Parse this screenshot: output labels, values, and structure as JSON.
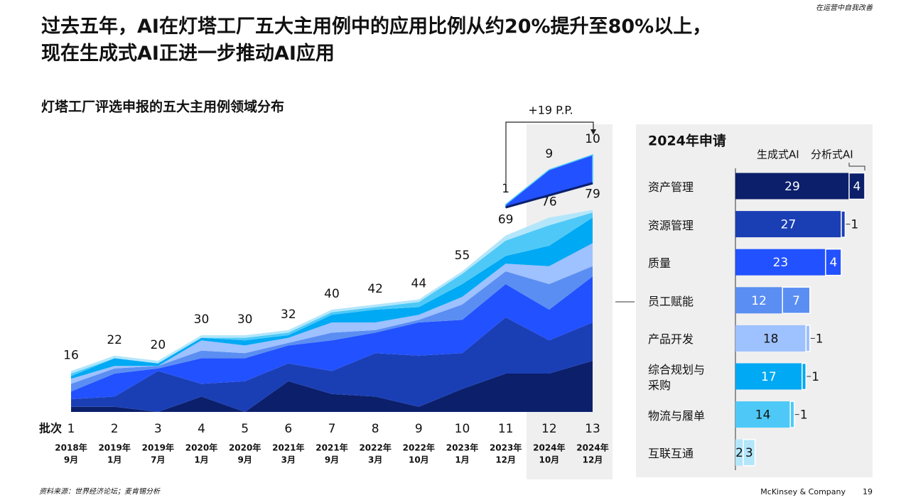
{
  "header": {
    "title_lines": [
      "过去五年，AI在灯塔工厂五大主用例中的应用比例从约20%提升至80%以上，",
      "现在生成式AI正进一步推动AI应用"
    ],
    "corner_note": "在运营中自我改善"
  },
  "chart_data": [
    {
      "type": "area",
      "title": "灯塔工厂评选申报的五大主用例领域分布",
      "x_label": "批次",
      "categories": [
        "1",
        "2",
        "3",
        "4",
        "5",
        "6",
        "7",
        "8",
        "9",
        "10",
        "11",
        "12",
        "13"
      ],
      "dates": [
        [
          "2018年",
          "9月"
        ],
        [
          "2019年",
          "1月"
        ],
        [
          "2019年",
          "7月"
        ],
        [
          "2020年",
          "1月"
        ],
        [
          "2020年",
          "9月"
        ],
        [
          "2021年",
          "3月"
        ],
        [
          "2021年",
          "9月"
        ],
        [
          "2022年",
          "3月"
        ],
        [
          "2022年",
          "10月"
        ],
        [
          "2023年",
          "1月"
        ],
        [
          "2023年",
          "12月"
        ],
        [
          "2024年",
          "10月"
        ],
        [
          "2024年",
          "12月"
        ]
      ],
      "series": [
        {
          "color": "#0b1f6b",
          "values": [
            2,
            2,
            0,
            6,
            0,
            12,
            7,
            6,
            2,
            9,
            15,
            15,
            20
          ]
        },
        {
          "color": "#1a3fb5",
          "values": [
            3,
            4,
            16,
            5,
            12,
            7,
            9,
            17,
            20,
            14,
            22,
            13,
            15
          ]
        },
        {
          "color": "#2251ff",
          "values": [
            3,
            9,
            1,
            10,
            9,
            7,
            12,
            8,
            13,
            13,
            13,
            12,
            18
          ]
        },
        {
          "color": "#5b8ef2",
          "values": [
            3,
            2,
            1,
            3,
            2,
            1,
            3,
            1,
            1,
            6,
            5,
            10,
            4
          ]
        },
        {
          "color": "#9ec1ff",
          "values": [
            2,
            1,
            0,
            4,
            3,
            2,
            4,
            3,
            2,
            3,
            3,
            7,
            9
          ]
        },
        {
          "color": "#00a9f4",
          "values": [
            1,
            3,
            1,
            1,
            2,
            1,
            3,
            5,
            3,
            5,
            3,
            8,
            10
          ]
        },
        {
          "color": "#4ec9f7",
          "values": [
            1,
            0,
            0,
            0,
            1,
            1,
            1,
            1,
            2,
            4,
            6,
            8,
            2
          ]
        },
        {
          "color": "#b3e6fb",
          "values": [
            1,
            1,
            1,
            1,
            1,
            1,
            1,
            1,
            1,
            1,
            2,
            3,
            1
          ]
        }
      ],
      "totals": [
        16,
        22,
        20,
        30,
        30,
        32,
        40,
        42,
        44,
        55,
        69,
        76,
        79
      ],
      "genai_values": [
        null,
        null,
        null,
        null,
        null,
        null,
        null,
        null,
        null,
        null,
        1,
        9,
        10
      ],
      "genai_color": "#2251ff",
      "annotation": "+19 P.P.",
      "ylim": [
        0,
        80
      ]
    },
    {
      "type": "bar",
      "orientation": "horizontal",
      "title": "2024年申请",
      "categories": [
        "资产管理",
        "资源管理",
        "质量",
        "员工赋能",
        "产品开发",
        "综合规划与采购",
        "物流与履单",
        "互联互通"
      ],
      "colors": [
        "#0b1f6b",
        "#1a3fb5",
        "#2251ff",
        "#5b8ef2",
        "#9ec1ff",
        "#00a9f4",
        "#4ec9f7",
        "#b3e6fb"
      ],
      "series": [
        {
          "name": "生成式AI",
          "values": [
            29,
            27,
            23,
            12,
            18,
            17,
            14,
            2
          ]
        },
        {
          "name": "分析式AI",
          "values": [
            4,
            1,
            4,
            7,
            1,
            1,
            1,
            3
          ]
        }
      ],
      "xlim": [
        0,
        33
      ]
    }
  ],
  "footer": {
    "source": "资料来源：世界经济论坛；麦肯锡分析",
    "brand": "McKinsey & Company",
    "page": "19"
  }
}
